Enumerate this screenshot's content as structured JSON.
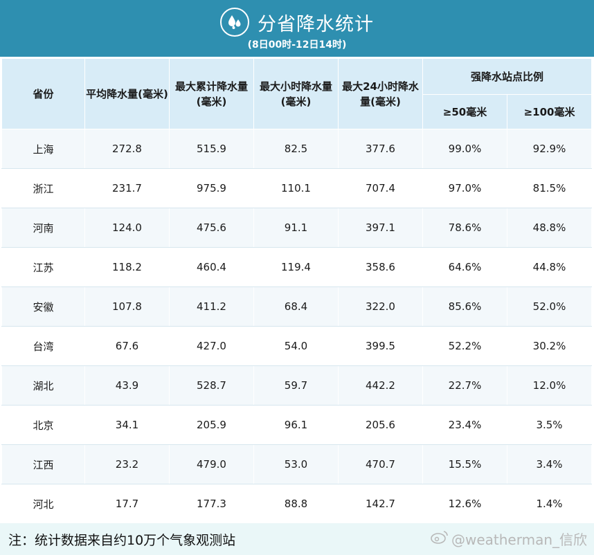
{
  "header": {
    "title": "分省降水统计",
    "subtitle": "(8日00时-12日14时)",
    "logo_icon": "raindrops-icon"
  },
  "colors": {
    "header_bg": "#2e8fb0",
    "table_header_bg": "#d8ecf7",
    "note_bg": "#eaf7f8"
  },
  "chart_data": {
    "type": "table",
    "title": "分省降水统计",
    "subtitle": "(8日00时-12日14时)",
    "columns": [
      "省份",
      "平均降水量(毫米)",
      "最大累计降水量(毫米)",
      "最大小时降水量(毫米)",
      "最大24小时降水量(毫米)",
      "强降水站点比例",
      "≥50毫米",
      "≥100毫米"
    ],
    "rows": [
      [
        "上海",
        "272.8",
        "515.9",
        "82.5",
        "377.6",
        "99.0%",
        "92.9%"
      ],
      [
        "浙江",
        "231.7",
        "975.9",
        "110.1",
        "707.4",
        "97.0%",
        "81.5%"
      ],
      [
        "河南",
        "124.0",
        "475.6",
        "91.1",
        "397.1",
        "78.6%",
        "48.8%"
      ],
      [
        "江苏",
        "118.2",
        "460.4",
        "119.4",
        "358.6",
        "64.6%",
        "44.8%"
      ],
      [
        "安徽",
        "107.8",
        "411.2",
        "68.4",
        "322.0",
        "85.6%",
        "52.0%"
      ],
      [
        "台湾",
        "67.6",
        "427.0",
        "54.0",
        "399.5",
        "52.2%",
        "30.2%"
      ],
      [
        "湖北",
        "43.9",
        "528.7",
        "59.7",
        "442.2",
        "22.7%",
        "12.0%"
      ],
      [
        "北京",
        "34.1",
        "205.9",
        "96.1",
        "205.6",
        "23.4%",
        "3.5%"
      ],
      [
        "江西",
        "23.2",
        "479.0",
        "53.0",
        "470.7",
        "15.5%",
        "3.4%"
      ],
      [
        "河北",
        "17.7",
        "177.3",
        "88.8",
        "142.7",
        "12.6%",
        "1.4%"
      ]
    ]
  },
  "footer": {
    "note": "注：统计数据来自约10万个气象观测站",
    "watermark": "@weatherman_信欣",
    "watermark_icon": "weibo-icon"
  }
}
